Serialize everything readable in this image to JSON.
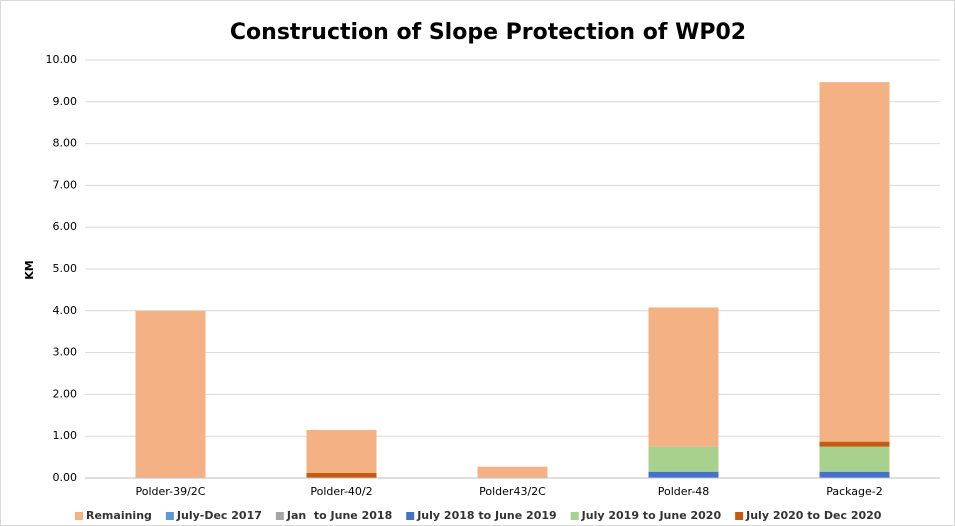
{
  "chart_data": {
    "type": "stacked_bar",
    "title": "Construction of Slope Protection of WP02",
    "ylabel": "KM",
    "categories": [
      "Polder-39/2C",
      "Polder-40/2",
      "Polder43/2C",
      "Polder-48",
      "Package-2"
    ],
    "series": [
      {
        "name": "Remaining",
        "color": "#f4b183",
        "values": [
          4.0,
          1.03,
          0.27,
          3.33,
          8.6
        ]
      },
      {
        "name": "July-Dec 2017",
        "color": "#5b9bd5",
        "values": [
          0,
          0,
          0,
          0,
          0
        ]
      },
      {
        "name": "Jan  to June 2018",
        "color": "#a5a5a5",
        "values": [
          0,
          0,
          0,
          0,
          0
        ]
      },
      {
        "name": "July 2018 to June 2019",
        "color": "#4472c4",
        "values": [
          0,
          0,
          0,
          0.15,
          0.15
        ]
      },
      {
        "name": "July 2019 to June 2020",
        "color": "#a9d18e",
        "values": [
          0,
          0,
          0,
          0.6,
          0.6
        ]
      },
      {
        "name": "July 2020 to Dec 2020",
        "color": "#c55a11",
        "values": [
          0,
          0.12,
          0,
          0,
          0.12
        ]
      }
    ],
    "ylim": [
      0,
      10
    ],
    "yticks": [
      {
        "value": 0,
        "label": "0.00"
      },
      {
        "value": 1,
        "label": "1.00"
      },
      {
        "value": 2,
        "label": "2.00"
      },
      {
        "value": 3,
        "label": "3.00"
      },
      {
        "value": 4,
        "label": "4.00"
      },
      {
        "value": 5,
        "label": "5.00"
      },
      {
        "value": 6,
        "label": "6.00"
      },
      {
        "value": 7,
        "label": "7.00"
      },
      {
        "value": 8,
        "label": "8.00"
      },
      {
        "value": 9,
        "label": "9.00"
      },
      {
        "value": 10,
        "label": "10.00"
      }
    ],
    "grid": true,
    "legend": "bottom"
  }
}
